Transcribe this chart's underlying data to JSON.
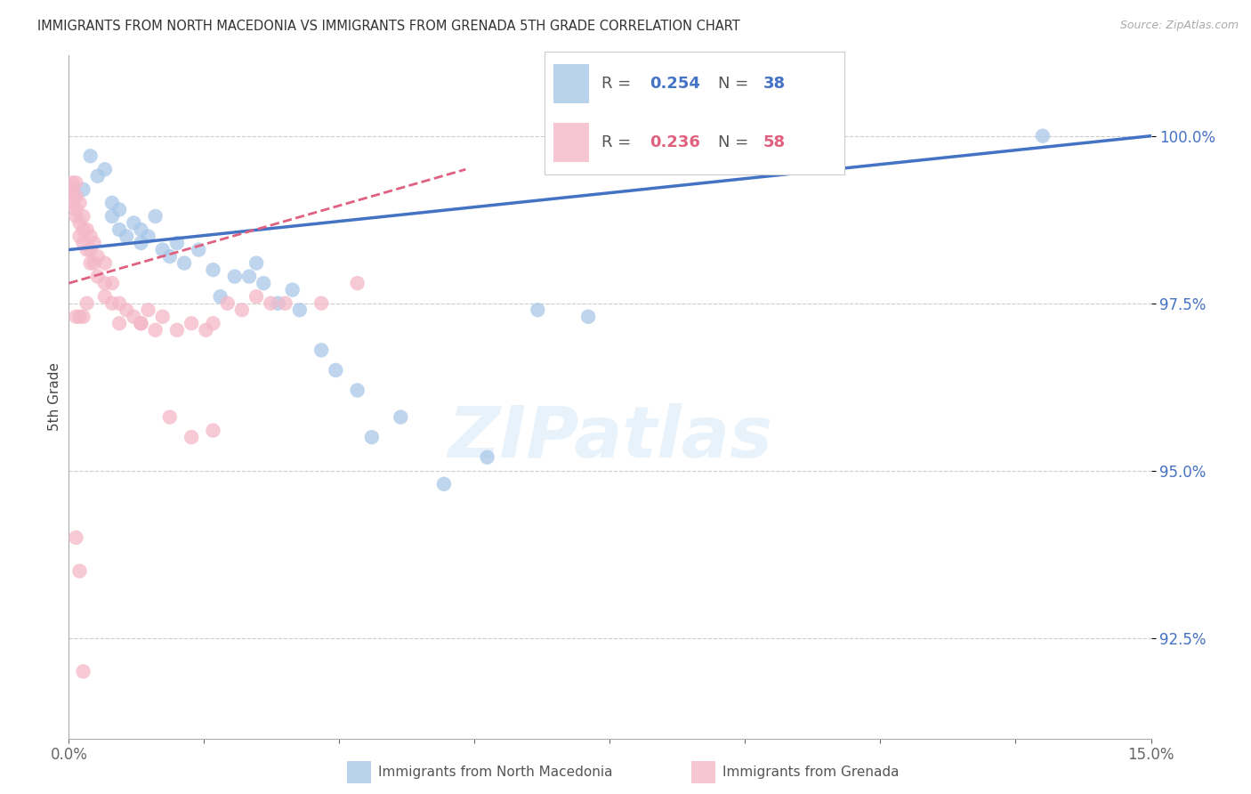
{
  "title": "IMMIGRANTS FROM NORTH MACEDONIA VS IMMIGRANTS FROM GRENADA 5TH GRADE CORRELATION CHART",
  "source": "Source: ZipAtlas.com",
  "ylabel": "5th Grade",
  "xmin": 0.0,
  "xmax": 15.0,
  "ymin": 91.0,
  "ymax": 101.2,
  "yticks": [
    92.5,
    95.0,
    97.5,
    100.0
  ],
  "color_blue": "#a8c8e8",
  "color_pink": "#f4b8c8",
  "color_blue_line": "#4472C4",
  "color_pink_line": "#e06080",
  "color_text_blue": "#4472C4",
  "color_text_pink": "#e06080",
  "color_axis_y": "#4472C4",
  "blue_x": [
    0.2,
    0.3,
    0.4,
    0.5,
    0.6,
    0.6,
    0.7,
    0.7,
    0.8,
    0.9,
    1.0,
    1.0,
    1.1,
    1.2,
    1.3,
    1.4,
    1.5,
    1.6,
    1.8,
    2.0,
    2.1,
    2.3,
    2.5,
    2.6,
    2.7,
    2.9,
    3.1,
    3.2,
    3.5,
    3.7,
    4.0,
    4.2,
    4.6,
    5.2,
    5.8,
    6.5,
    7.2,
    13.5
  ],
  "blue_y": [
    99.2,
    99.7,
    99.4,
    99.5,
    99.0,
    98.8,
    98.9,
    98.6,
    98.5,
    98.7,
    98.6,
    98.4,
    98.5,
    98.8,
    98.3,
    98.2,
    98.4,
    98.1,
    98.3,
    98.0,
    97.6,
    97.9,
    97.9,
    98.1,
    97.8,
    97.5,
    97.7,
    97.4,
    96.8,
    96.5,
    96.2,
    95.5,
    95.8,
    94.8,
    95.2,
    97.4,
    97.3,
    100.0
  ],
  "pink_x": [
    0.05,
    0.05,
    0.05,
    0.05,
    0.1,
    0.1,
    0.1,
    0.1,
    0.15,
    0.15,
    0.15,
    0.2,
    0.2,
    0.2,
    0.25,
    0.25,
    0.3,
    0.3,
    0.3,
    0.35,
    0.35,
    0.4,
    0.4,
    0.5,
    0.5,
    0.5,
    0.6,
    0.6,
    0.7,
    0.8,
    0.9,
    1.0,
    1.1,
    1.2,
    1.3,
    1.5,
    1.7,
    1.9,
    2.0,
    2.2,
    2.4,
    2.6,
    2.8,
    3.0,
    3.5,
    4.0,
    0.1,
    0.15,
    0.2,
    0.25,
    0.7,
    1.0,
    1.4,
    1.7,
    2.0,
    0.1,
    0.15,
    0.2
  ],
  "pink_y": [
    99.3,
    99.2,
    99.1,
    99.0,
    99.3,
    99.1,
    98.9,
    98.8,
    99.0,
    98.7,
    98.5,
    98.8,
    98.6,
    98.4,
    98.6,
    98.3,
    98.5,
    98.3,
    98.1,
    98.4,
    98.1,
    98.2,
    97.9,
    98.1,
    97.8,
    97.6,
    97.8,
    97.5,
    97.5,
    97.4,
    97.3,
    97.2,
    97.4,
    97.1,
    97.3,
    97.1,
    97.2,
    97.1,
    97.2,
    97.5,
    97.4,
    97.6,
    97.5,
    97.5,
    97.5,
    97.8,
    97.3,
    97.3,
    97.3,
    97.5,
    97.2,
    97.2,
    95.8,
    95.5,
    95.6,
    94.0,
    93.5,
    92.0
  ]
}
